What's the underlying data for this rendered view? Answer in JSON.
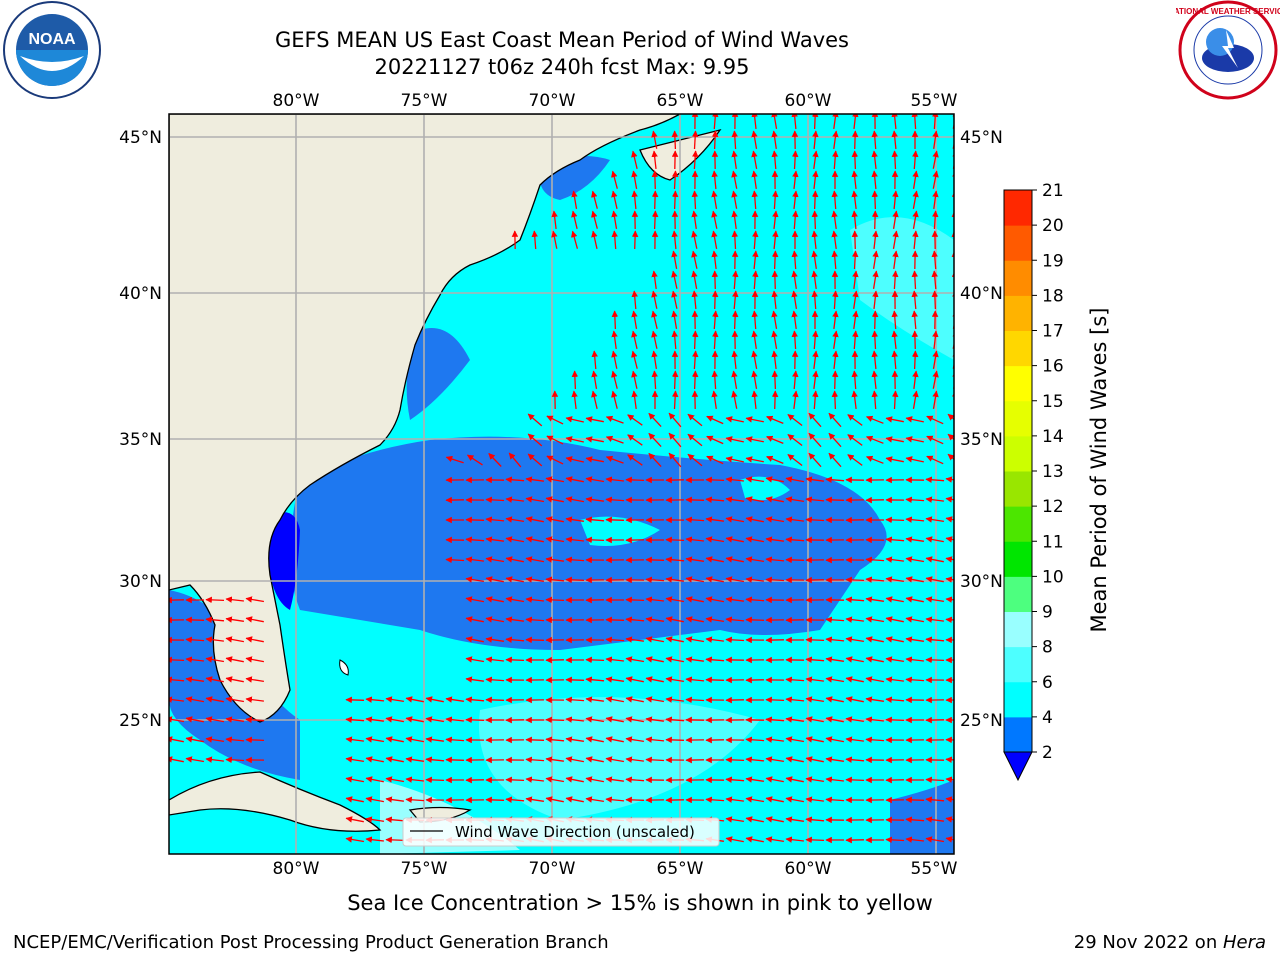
{
  "header": {
    "title_line1": "GEFS MEAN US East Coast Mean Period of Wind Waves",
    "title_line2": "20221127 t06z 240h fcst   Max: 9.95"
  },
  "logos": {
    "noaa": {
      "text": "NOAA",
      "icon": "noaa-logo-icon"
    },
    "nws": {
      "text": "NATIONAL WEATHER SERVICE",
      "icon": "nws-logo-icon"
    }
  },
  "map": {
    "lon_labels": [
      "80°W",
      "75°W",
      "70°W",
      "65°W",
      "60°W",
      "55°W"
    ],
    "lat_labels": [
      "45°N",
      "40°N",
      "35°N",
      "30°N",
      "25°N"
    ],
    "legend_text": "Wind Wave Direction (unscaled)",
    "arrow_color": "#ff0000",
    "land_color": "#efedde",
    "extent": {
      "lon_min": -85,
      "lon_max": -54.2,
      "lat_min": 20.5,
      "lat_max": 46.5
    }
  },
  "colorbar": {
    "label": "Mean Period of Wind Waves [s]",
    "ticks": [
      "2",
      "4",
      "6",
      "8",
      "9",
      "10",
      "11",
      "12",
      "13",
      "14",
      "15",
      "16",
      "17",
      "18",
      "19",
      "20",
      "21"
    ],
    "colors": [
      "#0078ff",
      "#00ffff",
      "#4dffff",
      "#99ffff",
      "#4dff7f",
      "#00e600",
      "#4ce600",
      "#99e600",
      "#ccff00",
      "#e6ff00",
      "#ffff00",
      "#ffd700",
      "#ffb300",
      "#ff8c00",
      "#ff5a00",
      "#ff2800",
      "#ff0000"
    ],
    "extend_min_color": "#0000ff"
  },
  "footer": {
    "note": "Sea Ice Concentration > 15% is shown in pink to yellow",
    "left": "NCEP/EMC/Verification Post Processing Product Generation Branch",
    "right_date": "29 Nov 2022 on ",
    "right_machine": "Hera"
  }
}
